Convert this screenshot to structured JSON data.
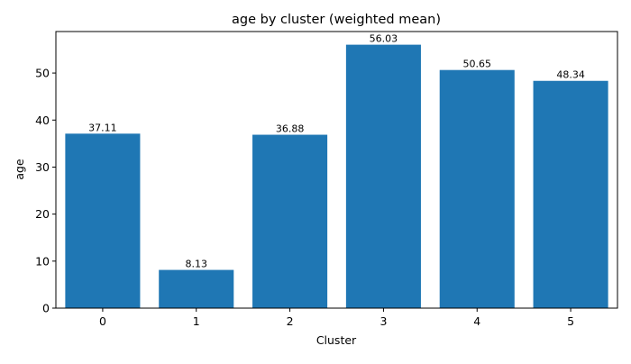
{
  "chart_data": {
    "type": "bar",
    "title": "age by cluster (weighted mean)",
    "xlabel": "Cluster",
    "ylabel": "age",
    "categories": [
      "0",
      "1",
      "2",
      "3",
      "4",
      "5"
    ],
    "values": [
      37.11,
      8.13,
      36.88,
      56.03,
      50.65,
      48.34
    ],
    "data_labels": [
      "37.11",
      "8.13",
      "36.88",
      "56.03",
      "50.65",
      "48.34"
    ],
    "yticks": [
      0,
      10,
      20,
      30,
      40,
      50
    ],
    "ylim": [
      0,
      58.83
    ],
    "bar_color": "#1f77b4",
    "grid": false,
    "legend": "none"
  }
}
